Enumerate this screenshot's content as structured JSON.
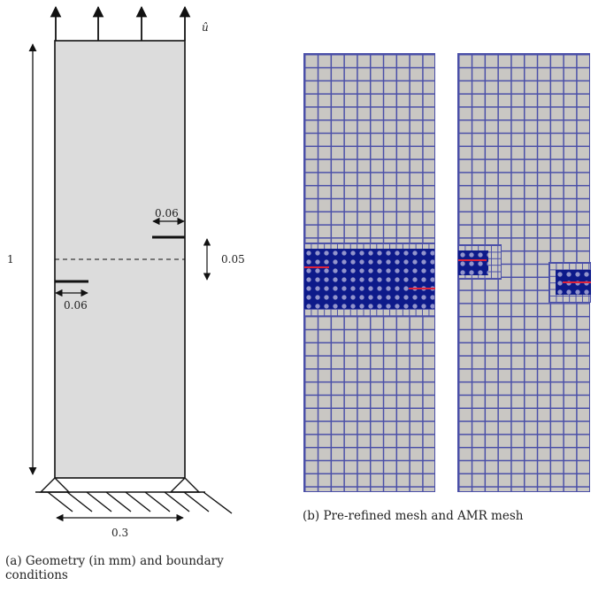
{
  "geometry": {
    "displacement_label": "û",
    "height_label": "1",
    "width_label": "0.3",
    "crack_offset_label": "0.05",
    "crack_length_right_label": "0.06",
    "crack_length_left_label": "0.06",
    "specimen_fill": "#dcdcdc"
  },
  "mesh": {
    "coarse_color": "#c9c7c3",
    "grid_line_color": "#4a4fa8",
    "refined_color": "#0d1a8a",
    "crack_color": "#e0233a"
  },
  "captions": {
    "left": "(a) Geometry (in mm) and boundary conditions",
    "right": "(b) Pre-refined mesh and AMR mesh"
  }
}
